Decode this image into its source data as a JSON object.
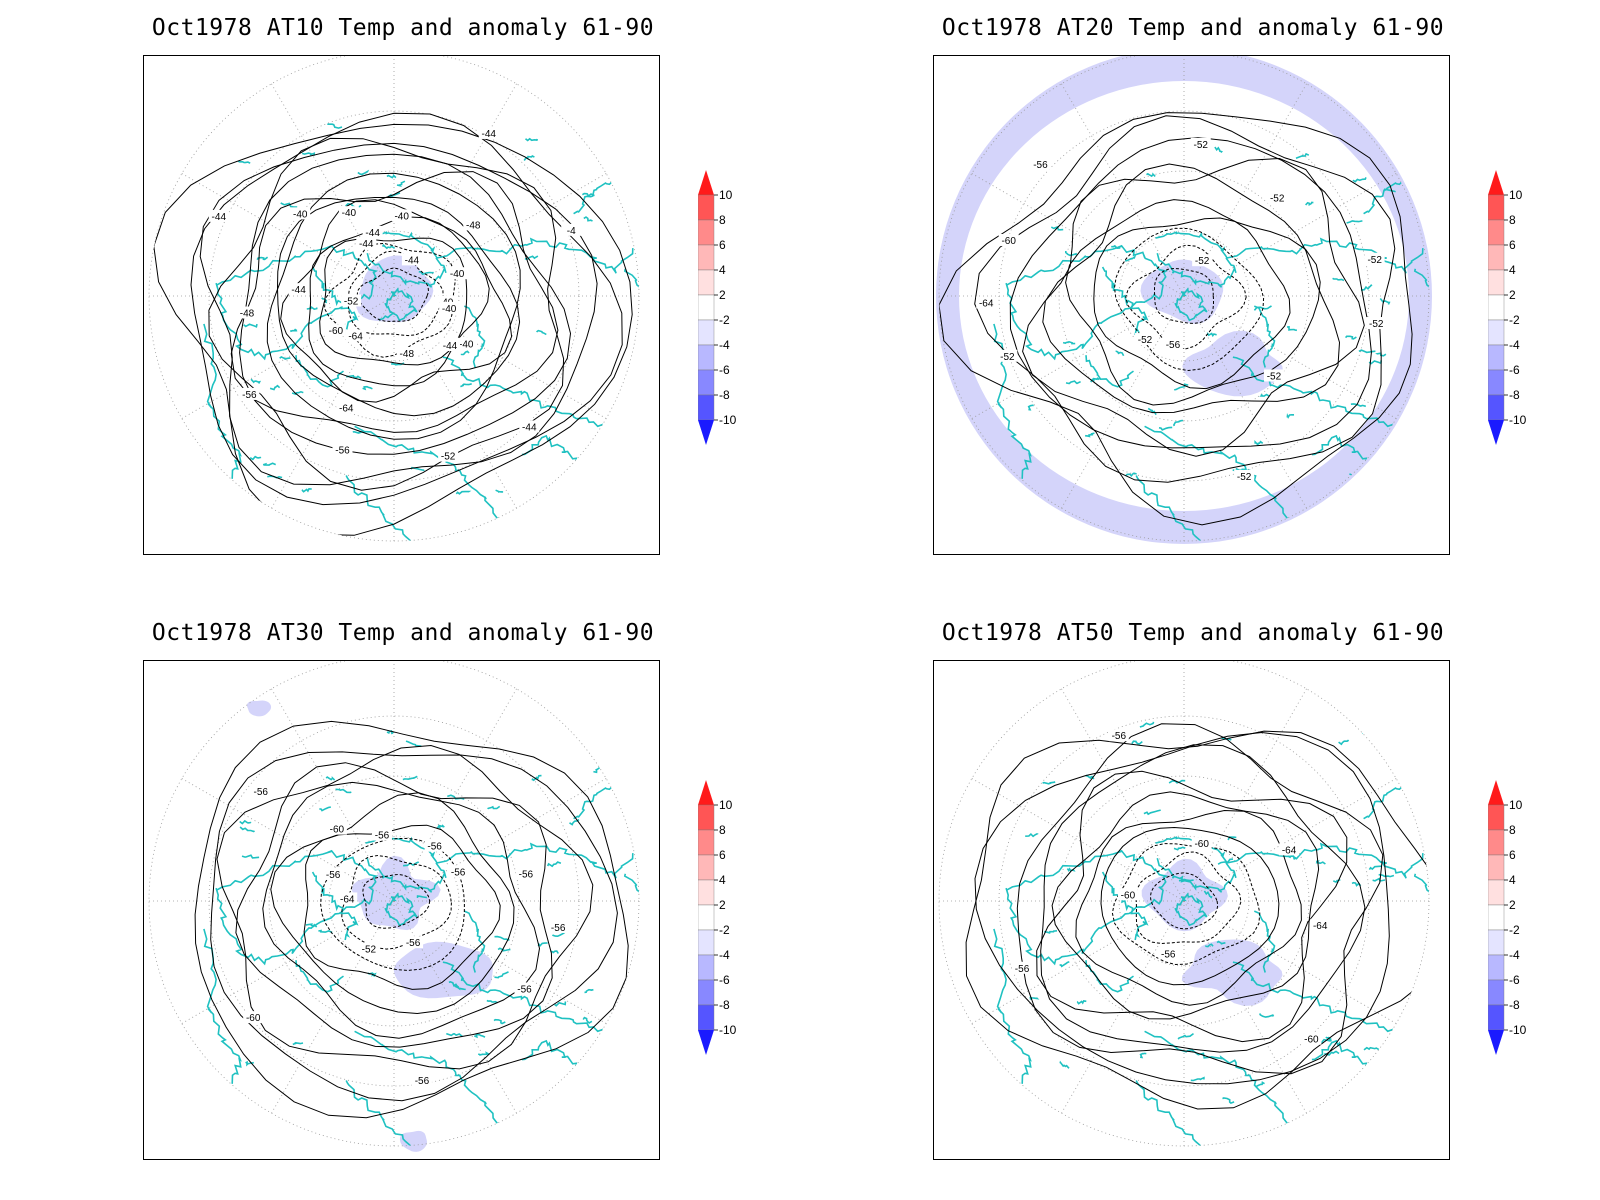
{
  "panels": [
    {
      "id": "at10",
      "title": "Oct1978 AT10 Temp and anomaly 61-90",
      "contour_labels": [
        "-40",
        "-40",
        "-44",
        "-44",
        "-48",
        "-52",
        "-56",
        "-64",
        "-64",
        "-60",
        "-56",
        "-52",
        "-48",
        "-44",
        "-44",
        "-40",
        "-40",
        "-44",
        "-44",
        "-40",
        "-44",
        "-44",
        "-48",
        "-4",
        "-40",
        "-40"
      ],
      "anomaly_shading": [
        "pole"
      ]
    },
    {
      "id": "at20",
      "title": "Oct1978 AT20 Temp and anomaly 61-90",
      "contour_labels": [
        "-52",
        "-52",
        "-52",
        "-56",
        "-52",
        "-52",
        "-64",
        "-60",
        "-56",
        "-52",
        "-52",
        "-52",
        "-52"
      ],
      "anomaly_shading": [
        "ring",
        "pole",
        "siberia"
      ]
    },
    {
      "id": "at30",
      "title": "Oct1978 AT30 Temp and anomaly 61-90",
      "contour_labels": [
        "-56",
        "-56",
        "-56",
        "-56",
        "-52",
        "-60",
        "-64",
        "-56",
        "-56",
        "-60",
        "-56",
        "-56",
        "-56",
        "-56"
      ],
      "anomaly_shading": [
        "pole",
        "siberia",
        "small"
      ]
    },
    {
      "id": "at50",
      "title": "Oct1978 AT50 Temp and anomaly 61-90",
      "contour_labels": [
        "-64",
        "-60",
        "-56",
        "-56",
        "-60",
        "-56",
        "-60",
        "-64"
      ],
      "anomaly_shading": [
        "pole",
        "siberia"
      ]
    }
  ],
  "colorbar": {
    "labels": [
      "10",
      "8",
      "6",
      "4",
      "2",
      "-2",
      "-4",
      "-6",
      "-8",
      "-10"
    ],
    "colors": [
      "#ff1a1a",
      "#ff5555",
      "#ff8a8a",
      "#ffb8b8",
      "#ffe0e0",
      "#ffffff",
      "#e4e4ff",
      "#b8b8ff",
      "#8888ff",
      "#5555ff",
      "#1a1aff"
    ]
  },
  "styles": {
    "coast_color": "#1fc1c1",
    "contour_color": "#000000",
    "anomaly_fill": "#d4d4fa",
    "grid_color": "#999999"
  }
}
